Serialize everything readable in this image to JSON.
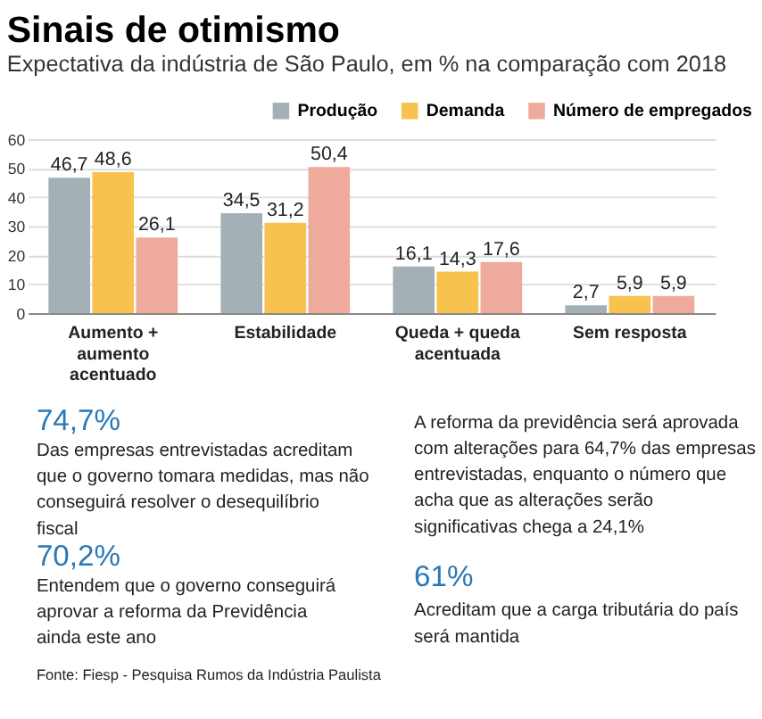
{
  "chart_data": {
    "type": "bar",
    "title": "Sinais de otimismo",
    "subtitle": "Expectativa da indústria de São Paulo, em % na comparação com 2018",
    "categories": [
      "Aumento + aumento acentuado",
      "Estabilidade",
      "Queda + queda acentuada",
      "Sem resposta"
    ],
    "series": [
      {
        "name": "Produção",
        "color": "#a3b1b7",
        "values": [
          46.7,
          34.5,
          16.1,
          2.7
        ],
        "value_labels": [
          "46,7",
          "34,5",
          "16,1",
          "2,7"
        ]
      },
      {
        "name": "Demanda",
        "color": "#f7c24d",
        "values": [
          48.6,
          31.2,
          14.3,
          5.9
        ],
        "value_labels": [
          "48,6",
          "31,2",
          "14,3",
          "5,9"
        ]
      },
      {
        "name": "Número de empregados",
        "color": "#eeab9b",
        "values": [
          26.1,
          50.4,
          17.6,
          5.9
        ],
        "value_labels": [
          "26,1",
          "50,4",
          "17,6",
          "5,9"
        ]
      }
    ],
    "ylim": [
      0,
      60
    ],
    "yticks": [
      0,
      10,
      20,
      30,
      40,
      50,
      60
    ],
    "grid": "y",
    "legend": "top right",
    "annotations": [
      "74,7%",
      "Das empresas entrevistadas acreditam que o governo tomara medidas, mas não conseguirá resolver o desequilíbrio fiscal",
      "70,2%",
      "Entendem que o governo conseguirá aprovar a reforma da Previdência ainda este ano",
      "A reforma da previdência será aprovada com alterações para 64,7% das empresas entrevistadas, enquanto o número que acha que as alterações serão significativas chega a 24,1%",
      "61%",
      "Acreditam que a carga tributária do país será mantida",
      "Fonte: Fiesp - Pesquisa Rumos da Indústria Paulista"
    ]
  }
}
